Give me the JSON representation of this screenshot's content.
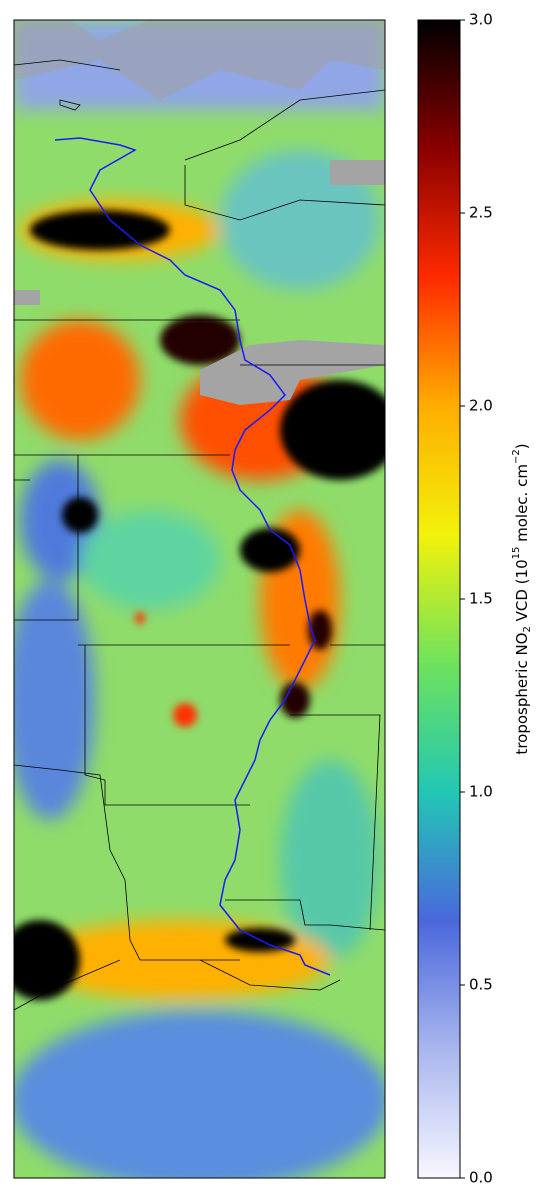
{
  "colorbar": {
    "clim": [
      0,
      3
    ],
    "ticks": [
      {
        "value": 0,
        "label": "0.0"
      },
      0.5,
      {
        "value": 1,
        "label": "1.0"
      },
      1.5,
      {
        "value": 2,
        "label": "2.0"
      },
      2.5,
      {
        "value": 3,
        "label": "3.0"
      }
    ],
    "colormap": [
      "#f7f7ff",
      "#a9b6ee",
      "#4a68dc",
      "#22c7b4",
      "#6fe25c",
      "#f2f20a",
      "#ffad00",
      "#ff2a00",
      "#8a0000",
      "#000000"
    ],
    "label_parts": [
      "tropospheric NO",
      "2",
      " VCD (10",
      "15",
      " molec. cm",
      "−2",
      ")"
    ]
  }
}
